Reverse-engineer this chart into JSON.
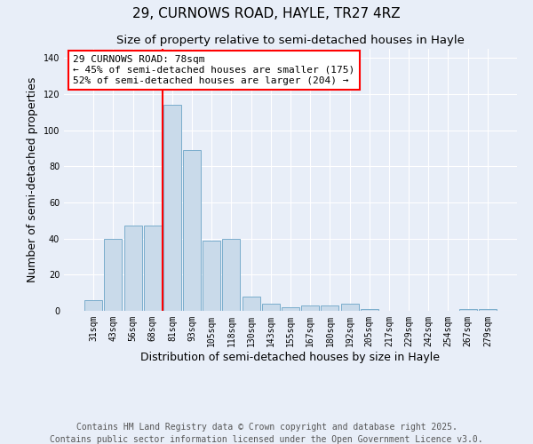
{
  "title": "29, CURNOWS ROAD, HAYLE, TR27 4RZ",
  "subtitle": "Size of property relative to semi-detached houses in Hayle",
  "xlabel": "Distribution of semi-detached houses by size in Hayle",
  "ylabel": "Number of semi-detached properties",
  "categories": [
    "31sqm",
    "43sqm",
    "56sqm",
    "68sqm",
    "81sqm",
    "93sqm",
    "105sqm",
    "118sqm",
    "130sqm",
    "143sqm",
    "155sqm",
    "167sqm",
    "180sqm",
    "192sqm",
    "205sqm",
    "217sqm",
    "229sqm",
    "242sqm",
    "254sqm",
    "267sqm",
    "279sqm"
  ],
  "values": [
    6,
    40,
    47,
    47,
    114,
    89,
    39,
    40,
    8,
    4,
    2,
    3,
    3,
    4,
    1,
    0,
    0,
    0,
    0,
    1,
    1
  ],
  "bar_color": "#c9daea",
  "bar_edge_color": "#7aadcc",
  "vline_index": 4,
  "vline_color": "red",
  "ylim": [
    0,
    145
  ],
  "yticks": [
    0,
    20,
    40,
    60,
    80,
    100,
    120,
    140
  ],
  "annotation_title": "29 CURNOWS ROAD: 78sqm",
  "annotation_line1": "← 45% of semi-detached houses are smaller (175)",
  "annotation_line2": "52% of semi-detached houses are larger (204) →",
  "annotation_text_color": "black",
  "footnote1": "Contains HM Land Registry data © Crown copyright and database right 2025.",
  "footnote2": "Contains public sector information licensed under the Open Government Licence v3.0.",
  "background_color": "#e8eef8",
  "plot_background": "#e8eef8",
  "title_fontsize": 11,
  "subtitle_fontsize": 9.5,
  "tick_fontsize": 7,
  "ylabel_fontsize": 9,
  "xlabel_fontsize": 9,
  "annotation_fontsize": 8,
  "footnote_fontsize": 7
}
